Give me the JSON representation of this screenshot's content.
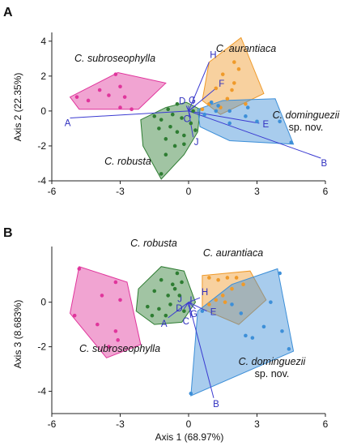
{
  "colors": {
    "subroseophylla": "#e0359c",
    "robusta": "#2e7d32",
    "aurantiaca": "#ef9a2a",
    "dominguezii": "#3d8fd8",
    "vector": "#3b3bd1"
  },
  "chart_data": [
    {
      "type": "scatter",
      "panel": "A",
      "xlabel": "",
      "ylabel": "Axis 2 (22.35%)",
      "xlim": [
        -6,
        6
      ],
      "ylim": [
        -4,
        4.5
      ],
      "xticks": [
        "-6",
        "-3",
        "0",
        "3",
        "6"
      ],
      "yticks": [
        "-4",
        "-2",
        "0",
        "2",
        "4"
      ],
      "groups": [
        {
          "key": "subroseophylla",
          "label": "C. subroseophylla",
          "note": "",
          "points": [
            [
              -3.2,
              2.1
            ],
            [
              -3.0,
              1.4
            ],
            [
              -3.5,
              0.9
            ],
            [
              -2.8,
              0.8
            ],
            [
              -4.4,
              0.6
            ],
            [
              -3.0,
              0.2
            ],
            [
              -2.5,
              0.1
            ],
            [
              -4.9,
              0.8
            ],
            [
              -3.9,
              1.2
            ]
          ],
          "hull": [
            [
              -5.2,
              0.8
            ],
            [
              -4.6,
              1.2
            ],
            [
              -3.1,
              2.2
            ],
            [
              -1.0,
              1.6
            ],
            [
              -2.2,
              0.1
            ],
            [
              -4.8,
              0.1
            ]
          ]
        },
        {
          "key": "robusta",
          "label": "C. robusta",
          "note": "",
          "points": [
            [
              -1.2,
              -0.5
            ],
            [
              -0.8,
              -0.9
            ],
            [
              -0.5,
              -1.2
            ],
            [
              -1.0,
              -1.6
            ],
            [
              -0.3,
              -0.4
            ],
            [
              0.1,
              -0.7
            ],
            [
              -0.6,
              -2.0
            ],
            [
              -1.2,
              -3.6
            ],
            [
              -0.2,
              -1.9
            ],
            [
              0.2,
              0.0
            ],
            [
              -0.5,
              0.4
            ],
            [
              -1.3,
              -1.0
            ],
            [
              -0.9,
              0.1
            ],
            [
              -0.2,
              -1.4
            ],
            [
              0.3,
              -1.1
            ],
            [
              -1.0,
              -2.5
            ],
            [
              -0.7,
              -0.2
            ],
            [
              -1.5,
              -0.3
            ]
          ],
          "hull": [
            [
              -2.1,
              -0.5
            ],
            [
              -1.0,
              0.2
            ],
            [
              -0.1,
              0.5
            ],
            [
              0.5,
              0.1
            ],
            [
              0.4,
              -1.2
            ],
            [
              -0.2,
              -2.5
            ],
            [
              -1.2,
              -3.9
            ],
            [
              -2.0,
              -2.0
            ]
          ]
        },
        {
          "key": "aurantiaca",
          "label": "C. aurantiaca",
          "note": "",
          "points": [
            [
              2.0,
              2.8
            ],
            [
              2.2,
              2.4
            ],
            [
              1.5,
              2.1
            ],
            [
              2.0,
              1.6
            ],
            [
              1.2,
              1.3
            ],
            [
              1.7,
              0.7
            ],
            [
              0.9,
              0.4
            ],
            [
              0.6,
              0.1
            ],
            [
              1.4,
              0.2
            ],
            [
              2.5,
              0.4
            ],
            [
              1.9,
              1.2
            ]
          ],
          "hull": [
            [
              0.6,
              0.6
            ],
            [
              0.9,
              2.8
            ],
            [
              2.3,
              4.2
            ],
            [
              3.3,
              1.0
            ],
            [
              1.4,
              -0.2
            ]
          ]
        },
        {
          "key": "dominguezii",
          "label": "C. dominguezii",
          "note": "sp. nov.",
          "points": [
            [
              1.0,
              0.5
            ],
            [
              1.3,
              0.3
            ],
            [
              1.8,
              0.0
            ],
            [
              2.6,
              0.2
            ],
            [
              1.8,
              -0.7
            ],
            [
              3.0,
              -0.6
            ],
            [
              4.0,
              -0.6
            ],
            [
              4.5,
              -1.8
            ],
            [
              0.7,
              -0.2
            ],
            [
              2.5,
              -0.3
            ],
            [
              1.2,
              0.0
            ]
          ],
          "hull": [
            [
              0.4,
              0.1
            ],
            [
              1.5,
              0.6
            ],
            [
              3.8,
              0.7
            ],
            [
              4.6,
              -1.9
            ],
            [
              1.8,
              -1.7
            ],
            [
              0.5,
              -0.9
            ]
          ]
        }
      ],
      "vectors": [
        {
          "label": "A",
          "to": [
            -5.2,
            -0.4
          ]
        },
        {
          "label": "B",
          "to": [
            5.8,
            -2.7
          ]
        },
        {
          "label": "C",
          "to": [
            0.1,
            -0.4
          ]
        },
        {
          "label": "D",
          "to": [
            -0.1,
            0.3
          ]
        },
        {
          "label": "E",
          "to": [
            3.1,
            -0.7
          ]
        },
        {
          "label": "F",
          "to": [
            1.2,
            1.3
          ]
        },
        {
          "label": "G",
          "to": [
            0.3,
            0.3
          ]
        },
        {
          "label": "H",
          "to": [
            0.9,
            2.8
          ]
        },
        {
          "label": "I",
          "to": [
            0.0,
            0.3
          ]
        },
        {
          "label": "J",
          "to": [
            0.2,
            -1.5
          ]
        }
      ]
    },
    {
      "type": "scatter",
      "panel": "B",
      "xlabel": "Axis 1 (68.97%)",
      "ylabel": "Axis 3 (8.683%)",
      "xlim": [
        -6,
        6
      ],
      "ylim": [
        -5,
        2.5
      ],
      "xticks": [
        "-6",
        "-3",
        "0",
        "3",
        "6"
      ],
      "yticks": [
        "-4",
        "-2",
        "0"
      ],
      "groups": [
        {
          "key": "subroseophylla",
          "label": "C. subroseophylla",
          "note": "",
          "points": [
            [
              -4.8,
              1.5
            ],
            [
              -3.2,
              0.9
            ],
            [
              -3.8,
              0.3
            ],
            [
              -3.0,
              0.1
            ],
            [
              -5.0,
              -0.6
            ],
            [
              -4.0,
              -1.0
            ],
            [
              -3.2,
              -1.3
            ],
            [
              -3.1,
              -1.7
            ],
            [
              -3.5,
              -2.0
            ]
          ],
          "hull": [
            [
              -5.2,
              -0.5
            ],
            [
              -4.8,
              1.6
            ],
            [
              -2.7,
              0.9
            ],
            [
              -2.1,
              -1.9
            ],
            [
              -3.6,
              -2.5
            ]
          ]
        },
        {
          "key": "robusta",
          "label": "C. robusta",
          "note": "",
          "points": [
            [
              -1.2,
              1.0
            ],
            [
              -0.5,
              1.3
            ],
            [
              -0.7,
              0.8
            ],
            [
              -0.9,
              0.3
            ],
            [
              -1.5,
              0.5
            ],
            [
              -1.3,
              -0.3
            ],
            [
              -0.8,
              -0.1
            ],
            [
              -0.4,
              0.3
            ],
            [
              -0.2,
              -0.4
            ],
            [
              -1.0,
              -0.6
            ],
            [
              -1.8,
              -0.2
            ],
            [
              -1.6,
              -0.6
            ],
            [
              -0.6,
              0.6
            ],
            [
              -0.3,
              0.9
            ]
          ],
          "hull": [
            [
              -2.2,
              0.6
            ],
            [
              -1.2,
              1.6
            ],
            [
              -0.2,
              1.4
            ],
            [
              0.3,
              0.0
            ],
            [
              -0.3,
              -0.9
            ],
            [
              -1.5,
              -1.0
            ],
            [
              -2.3,
              -0.4
            ]
          ]
        },
        {
          "key": "aurantiaca",
          "label": "C. aurantiaca",
          "note": "",
          "points": [
            [
              0.9,
              1.1
            ],
            [
              1.3,
              1.0
            ],
            [
              1.7,
              1.1
            ],
            [
              2.1,
              1.1
            ],
            [
              2.4,
              0.8
            ],
            [
              1.9,
              0.6
            ],
            [
              1.5,
              0.3
            ],
            [
              1.2,
              0.1
            ],
            [
              0.9,
              -0.1
            ],
            [
              1.6,
              0.0
            ]
          ],
          "hull": [
            [
              0.6,
              1.2
            ],
            [
              2.7,
              1.4
            ],
            [
              3.4,
              0.1
            ],
            [
              2.2,
              -1.0
            ],
            [
              0.6,
              -0.3
            ]
          ]
        },
        {
          "key": "dominguezii",
          "label": "C. dominguezii",
          "note": "sp. nov.",
          "points": [
            [
              0.6,
              -0.4
            ],
            [
              1.9,
              -0.1
            ],
            [
              2.3,
              -0.5
            ],
            [
              3.6,
              0.0
            ],
            [
              3.3,
              -1.1
            ],
            [
              4.1,
              -1.3
            ],
            [
              2.5,
              -1.5
            ],
            [
              2.8,
              -1.6
            ],
            [
              0.1,
              -4.1
            ],
            [
              4.0,
              1.3
            ],
            [
              4.4,
              -2.1
            ]
          ],
          "hull": [
            [
              0.4,
              -0.4
            ],
            [
              1.9,
              0.8
            ],
            [
              3.9,
              1.5
            ],
            [
              4.6,
              -2.2
            ],
            [
              0.1,
              -4.2
            ]
          ]
        }
      ],
      "vectors": [
        {
          "label": "A",
          "to": [
            -0.9,
            -0.7
          ]
        },
        {
          "label": "B",
          "to": [
            1.1,
            -4.3
          ]
        },
        {
          "label": "C",
          "to": [
            0.1,
            -0.7
          ]
        },
        {
          "label": "D",
          "to": [
            -0.2,
            -0.3
          ]
        },
        {
          "label": "E",
          "to": [
            0.8,
            -0.4
          ]
        },
        {
          "label": "G",
          "to": [
            0.3,
            -0.3
          ]
        },
        {
          "label": "H",
          "to": [
            0.5,
            0.2
          ]
        },
        {
          "label": "I",
          "to": [
            0.0,
            -0.2
          ]
        },
        {
          "label": "J",
          "to": [
            -0.1,
            -0.1
          ]
        }
      ]
    }
  ]
}
